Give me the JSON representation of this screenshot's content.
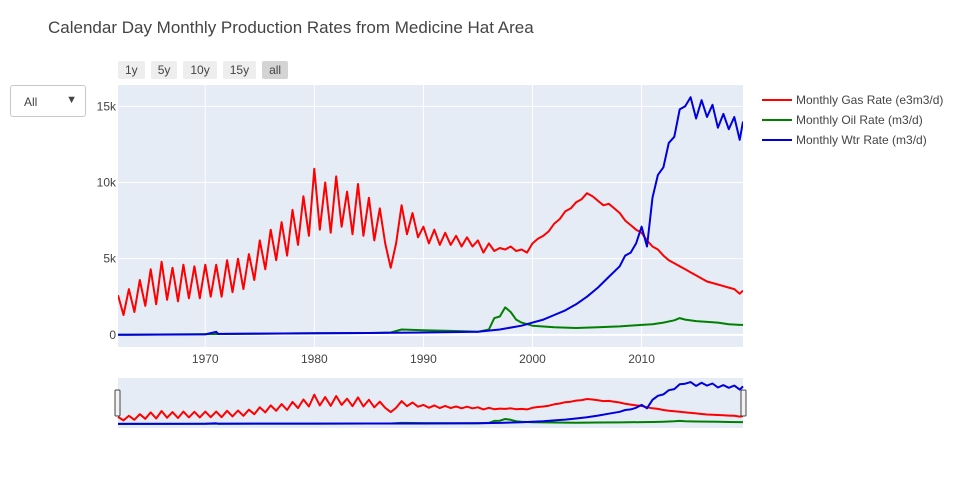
{
  "title": "Calendar Day Monthly Production Rates from Medicine Hat Area",
  "dropdown": {
    "selected": "All",
    "arrow": "▼"
  },
  "range_buttons": [
    {
      "label": "1y",
      "active": false
    },
    {
      "label": "5y",
      "active": false
    },
    {
      "label": "10y",
      "active": false
    },
    {
      "label": "15y",
      "active": false
    },
    {
      "label": "all",
      "active": true
    }
  ],
  "chart_data": {
    "type": "line",
    "title": "Calendar Day Monthly Production Rates from Medicine Hat Area",
    "xlabel": "",
    "ylabel": "",
    "xlim": [
      1962,
      2019.3
    ],
    "ylim": [
      -800,
      16400
    ],
    "x_ticks": [
      1970,
      1980,
      1990,
      2000,
      2010
    ],
    "y_ticks": [
      {
        "value": 0,
        "label": "0"
      },
      {
        "value": 5000,
        "label": "5k"
      },
      {
        "value": 10000,
        "label": "10k"
      },
      {
        "value": 15000,
        "label": "15k"
      }
    ],
    "grid": true,
    "legend_position": "right",
    "series": [
      {
        "name": "Monthly Gas Rate (e3m3/d)",
        "color": "#ff0000",
        "x": [
          1962,
          1962.5,
          1963,
          1963.5,
          1964,
          1964.5,
          1965,
          1965.5,
          1966,
          1966.5,
          1967,
          1967.5,
          1968,
          1968.5,
          1969,
          1969.5,
          1970,
          1970.5,
          1971,
          1971.5,
          1972,
          1972.5,
          1973,
          1973.5,
          1974,
          1974.5,
          1975,
          1975.5,
          1976,
          1976.5,
          1977,
          1977.5,
          1978,
          1978.5,
          1979,
          1979.5,
          1980,
          1980.5,
          1981,
          1981.5,
          1982,
          1982.5,
          1983,
          1983.5,
          1984,
          1984.5,
          1985,
          1985.5,
          1986,
          1986.5,
          1987,
          1987.5,
          1988,
          1988.5,
          1989,
          1989.5,
          1990,
          1990.5,
          1991,
          1991.5,
          1992,
          1992.5,
          1993,
          1993.5,
          1994,
          1994.5,
          1995,
          1995.5,
          1996,
          1996.5,
          1997,
          1997.5,
          1998,
          1998.5,
          1999,
          1999.5,
          2000,
          2000.5,
          2001,
          2001.5,
          2002,
          2002.5,
          2003,
          2003.5,
          2004,
          2004.5,
          2005,
          2005.5,
          2006,
          2006.5,
          2007,
          2007.5,
          2008,
          2008.5,
          2009,
          2009.5,
          2010,
          2010.5,
          2011,
          2011.5,
          2012,
          2012.5,
          2013,
          2013.5,
          2014,
          2014.5,
          2015,
          2015.5,
          2016,
          2016.5,
          2017,
          2017.5,
          2018,
          2018.5,
          2019,
          2019.3
        ],
        "values": [
          2600,
          1300,
          3000,
          1500,
          3600,
          1900,
          4300,
          2000,
          4800,
          2300,
          4400,
          2200,
          4600,
          2400,
          4500,
          2400,
          4600,
          2500,
          4600,
          2500,
          4900,
          2800,
          5000,
          3000,
          5300,
          3600,
          6200,
          4300,
          6900,
          4900,
          7400,
          5200,
          8200,
          5900,
          9100,
          6500,
          10900,
          6900,
          10000,
          6700,
          10400,
          7100,
          9400,
          6600,
          9900,
          6500,
          9000,
          6200,
          8300,
          6000,
          4400,
          6000,
          8500,
          6600,
          8000,
          6400,
          7100,
          6000,
          6900,
          5900,
          6700,
          5900,
          6500,
          5800,
          6400,
          5800,
          6200,
          5400,
          6000,
          5500,
          5700,
          5600,
          5800,
          5500,
          5600,
          5400,
          6000,
          6300,
          6500,
          6800,
          7300,
          7600,
          8100,
          8300,
          8700,
          8900,
          9300,
          9100,
          8800,
          8500,
          8600,
          8300,
          8000,
          7500,
          7200,
          6900,
          6700,
          6200,
          5800,
          5600,
          5200,
          4900,
          4700,
          4500,
          4300,
          4100,
          3900,
          3700,
          3500,
          3400,
          3300,
          3200,
          3100,
          3000,
          2700,
          2900
        ]
      },
      {
        "name": "Monthly Oil Rate (m3/d)",
        "color": "#008000",
        "x": [
          1962,
          1970,
          1980,
          1985,
          1987,
          1988,
          1990,
          1993,
          1995,
          1996,
          1996.5,
          1997,
          1997.5,
          1998,
          1998.5,
          1999,
          2000,
          2002,
          2004,
          2006,
          2008,
          2010,
          2011,
          2012,
          2013,
          2013.5,
          2014,
          2015,
          2016,
          2017,
          2018,
          2019,
          2019.3
        ],
        "values": [
          0,
          50,
          100,
          120,
          150,
          350,
          300,
          250,
          200,
          350,
          1100,
          1200,
          1800,
          1500,
          1000,
          800,
          600,
          500,
          450,
          500,
          550,
          650,
          700,
          800,
          950,
          1100,
          1000,
          900,
          850,
          800,
          700,
          650,
          650
        ]
      },
      {
        "name": "Monthly Wtr Rate (m3/d)",
        "color": "#0000dd",
        "x": [
          1962,
          1970,
          1971,
          1971.2,
          1975,
          1980,
          1985,
          1990,
          1995,
          1997,
          1999,
          2000,
          2001,
          2002,
          2003,
          2004,
          2005,
          2006,
          2007,
          2008,
          2008.5,
          2009,
          2009.5,
          2010,
          2010.5,
          2011,
          2011.5,
          2012,
          2012.5,
          2013,
          2013.5,
          2014,
          2014.5,
          2015,
          2015.5,
          2016,
          2016.5,
          2017,
          2017.5,
          2018,
          2018.5,
          2019,
          2019.3
        ],
        "values": [
          0,
          30,
          200,
          60,
          80,
          100,
          120,
          150,
          200,
          350,
          600,
          800,
          1000,
          1300,
          1600,
          2000,
          2500,
          3100,
          3800,
          4500,
          5200,
          5400,
          6000,
          7100,
          5800,
          9000,
          10500,
          11000,
          12600,
          13000,
          14800,
          15000,
          15600,
          14200,
          15400,
          14300,
          15100,
          13600,
          14500,
          13500,
          14300,
          12800,
          14000
        ]
      }
    ]
  },
  "rangeslider": {
    "range": [
      1962,
      2019.3
    ]
  }
}
